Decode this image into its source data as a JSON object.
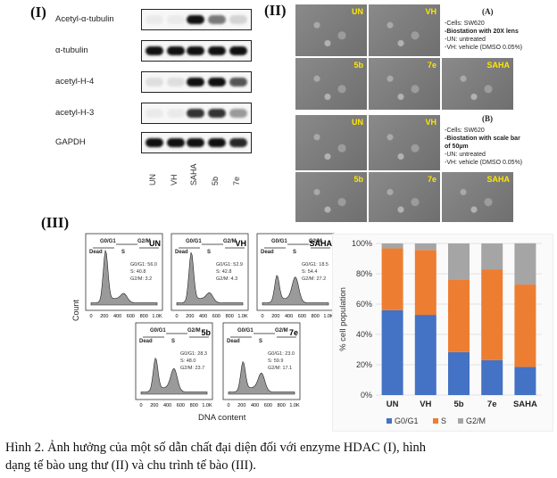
{
  "panels": {
    "I": "(I)",
    "II": "(II)",
    "III": "(III)"
  },
  "blot": {
    "rows": [
      "Acetyl-α-tubulin",
      "α-tubulin",
      "acetyl-H-4",
      "acetyl-H-3",
      "GAPDH"
    ],
    "lanes": [
      "UN",
      "VH",
      "SAHA",
      "5b",
      "7e"
    ]
  },
  "microscopy": {
    "setA": {
      "tag": "(A)",
      "tiles": [
        "UN",
        "VH",
        "5b",
        "7e",
        "SAHA"
      ],
      "info": [
        "-Cells: SW620",
        "-Biostation with 20X lens",
        "-UN: untreated",
        "-VH: vehicle (DMSO 0.05%)"
      ]
    },
    "setB": {
      "tag": "(B)",
      "tiles": [
        "UN",
        "VH",
        "5b",
        "7e",
        "SAHA"
      ],
      "info": [
        "-Cells: SW620",
        "-Biostation with scale bar",
        "of 50µm",
        "-UN: untreated",
        "-VH: vehicle (DMSO 0.05%)"
      ]
    }
  },
  "flow": {
    "y_title": "Count",
    "x_title": "DNA content",
    "gates": [
      "G0/G1",
      "Dead",
      "S",
      "G2/M"
    ],
    "x_ticks": [
      "0",
      "200",
      "400",
      "600",
      "800",
      "1.0K"
    ],
    "samples": [
      {
        "name": "UN",
        "lines": [
          "G0/G1: 56.0",
          "S: 40.8",
          "G2/M: 3.2"
        ]
      },
      {
        "name": "VH",
        "lines": [
          "G0/G1: 52.9",
          "S: 42.8",
          "G2/M: 4.3"
        ]
      },
      {
        "name": "SAHA",
        "lines": [
          "G0/G1: 18.5",
          "S: 54.4",
          "G2/M: 27.2"
        ]
      },
      {
        "name": "5b",
        "lines": [
          "G0/G1: 28.3",
          "S: 48.0",
          "G2/M: 23.7"
        ]
      },
      {
        "name": "7e",
        "lines": [
          "G0/G1: 23.0",
          "S: 59.9",
          "G2/M: 17.1"
        ]
      }
    ]
  },
  "chart_data": {
    "type": "bar",
    "stacked": true,
    "categories": [
      "UN",
      "VH",
      "5b",
      "7e",
      "SAHA"
    ],
    "series": [
      {
        "name": "G0/G1",
        "values": [
          56.0,
          52.9,
          28.3,
          23.0,
          18.5
        ],
        "color": "#4472c4"
      },
      {
        "name": "S",
        "values": [
          40.8,
          42.8,
          48.0,
          59.9,
          54.4
        ],
        "color": "#ed7d31"
      },
      {
        "name": "G2/M",
        "values": [
          3.2,
          4.3,
          23.7,
          17.1,
          27.2
        ],
        "color": "#a5a5a5"
      }
    ],
    "ylabel": "% cell population",
    "ylim": [
      0,
      100
    ],
    "yticks": [
      "0%",
      "20%",
      "40%",
      "60%",
      "80%",
      "100%"
    ],
    "grid": true,
    "legend_position": "bottom"
  },
  "caption": {
    "part1": "Hình 2. Ảnh hưởng của một số dẫn chất đại diện đối với enzyme HDAC (I), hình",
    "part2": "dạng tế bào ung thư (II) và chu trình tế bào (III)."
  }
}
